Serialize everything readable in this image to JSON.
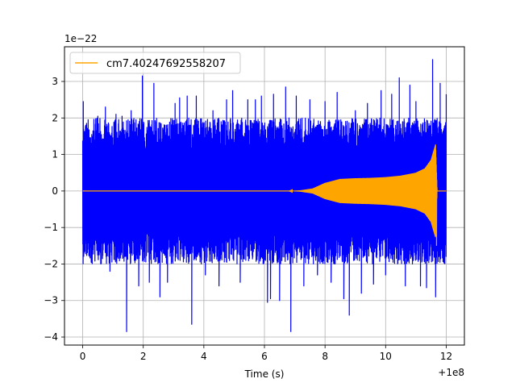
{
  "chart_data": {
    "type": "line",
    "title": "",
    "xlabel": "Time (s)",
    "ylabel": "",
    "x_offset_label": "+1e8",
    "y_scale_label": "1e−22",
    "xlim": [
      -0.6,
      12.6
    ],
    "ylim": [
      -4.22,
      3.95
    ],
    "x_ticks": [
      0,
      2,
      4,
      6,
      8,
      10,
      12
    ],
    "x_tick_labels": [
      "0",
      "2",
      "4",
      "6",
      "8",
      "10",
      "12"
    ],
    "y_ticks": [
      -4,
      -3,
      -2,
      -1,
      0,
      1,
      2,
      3
    ],
    "y_tick_labels": [
      "−4",
      "−3",
      "−2",
      "−1",
      "0",
      "1",
      "2",
      "3"
    ],
    "grid": true,
    "legend_position": "top-left",
    "series": [
      {
        "name": "",
        "color": "#0000ff",
        "kind": "noise",
        "x_range": [
          0,
          12
        ],
        "typical_envelope": [
          -2.0,
          2.0
        ],
        "peaks": [
          {
            "x": 0.02,
            "y": 2.45
          },
          {
            "x": 0.1,
            "y": -1.45
          },
          {
            "x": 0.28,
            "y": -1.95
          },
          {
            "x": 0.5,
            "y": 2.05
          },
          {
            "x": 0.75,
            "y": 2.3
          },
          {
            "x": 0.9,
            "y": -2.2
          },
          {
            "x": 1.1,
            "y": 2.1
          },
          {
            "x": 1.3,
            "y": 2.05
          },
          {
            "x": 1.45,
            "y": -3.85
          },
          {
            "x": 1.6,
            "y": 2.2
          },
          {
            "x": 1.85,
            "y": -2.6
          },
          {
            "x": 1.97,
            "y": 3.15
          },
          {
            "x": 2.2,
            "y": -2.5
          },
          {
            "x": 2.35,
            "y": 2.95
          },
          {
            "x": 2.55,
            "y": -2.9
          },
          {
            "x": 2.8,
            "y": -2.5
          },
          {
            "x": 3.05,
            "y": 2.4
          },
          {
            "x": 3.2,
            "y": 2.55
          },
          {
            "x": 3.45,
            "y": 2.6
          },
          {
            "x": 3.6,
            "y": -3.65
          },
          {
            "x": 3.75,
            "y": 2.6
          },
          {
            "x": 4.05,
            "y": -2.3
          },
          {
            "x": 4.3,
            "y": 2.2
          },
          {
            "x": 4.5,
            "y": -2.6
          },
          {
            "x": 4.75,
            "y": 2.5
          },
          {
            "x": 4.95,
            "y": 2.75
          },
          {
            "x": 5.2,
            "y": -2.5
          },
          {
            "x": 5.45,
            "y": 2.5
          },
          {
            "x": 5.7,
            "y": 2.5
          },
          {
            "x": 5.9,
            "y": 2.6
          },
          {
            "x": 6.1,
            "y": -3.05
          },
          {
            "x": 6.2,
            "y": -2.95
          },
          {
            "x": 6.3,
            "y": 2.65
          },
          {
            "x": 6.5,
            "y": -3.0
          },
          {
            "x": 6.7,
            "y": 2.85
          },
          {
            "x": 6.87,
            "y": -3.85
          },
          {
            "x": 7.05,
            "y": 2.6
          },
          {
            "x": 7.3,
            "y": -2.6
          },
          {
            "x": 7.5,
            "y": 2.5
          },
          {
            "x": 7.75,
            "y": -2.3
          },
          {
            "x": 8.0,
            "y": 2.45
          },
          {
            "x": 8.2,
            "y": -2.5
          },
          {
            "x": 8.4,
            "y": 2.7
          },
          {
            "x": 8.62,
            "y": -2.95
          },
          {
            "x": 8.8,
            "y": -3.4
          },
          {
            "x": 9.0,
            "y": 2.2
          },
          {
            "x": 9.2,
            "y": -2.8
          },
          {
            "x": 9.4,
            "y": 2.4
          },
          {
            "x": 9.6,
            "y": -2.55
          },
          {
            "x": 9.85,
            "y": 2.75
          },
          {
            "x": 10.0,
            "y": -2.3
          },
          {
            "x": 10.2,
            "y": 2.65
          },
          {
            "x": 10.45,
            "y": 3.1
          },
          {
            "x": 10.65,
            "y": -2.6
          },
          {
            "x": 10.8,
            "y": 2.9
          },
          {
            "x": 11.0,
            "y": 2.45
          },
          {
            "x": 11.15,
            "y": -2.6
          },
          {
            "x": 11.35,
            "y": -2.65
          },
          {
            "x": 11.55,
            "y": 3.6
          },
          {
            "x": 11.65,
            "y": -2.9
          },
          {
            "x": 11.8,
            "y": 2.95
          },
          {
            "x": 12.0,
            "y": 2.65
          }
        ]
      },
      {
        "name": "cm7.40247692558207",
        "color": "#ffa500",
        "kind": "chirp",
        "envelope": [
          {
            "x": 0,
            "y": 0.0
          },
          {
            "x": 6.8,
            "y": 0.0
          },
          {
            "x": 7.2,
            "y": 0.02
          },
          {
            "x": 7.6,
            "y": 0.07
          },
          {
            "x": 8.0,
            "y": 0.22
          },
          {
            "x": 8.5,
            "y": 0.33
          },
          {
            "x": 9.0,
            "y": 0.35
          },
          {
            "x": 9.5,
            "y": 0.36
          },
          {
            "x": 10.0,
            "y": 0.38
          },
          {
            "x": 10.5,
            "y": 0.42
          },
          {
            "x": 11.0,
            "y": 0.5
          },
          {
            "x": 11.3,
            "y": 0.62
          },
          {
            "x": 11.5,
            "y": 0.85
          },
          {
            "x": 11.65,
            "y": 1.28
          },
          {
            "x": 11.7,
            "y": 0.0
          },
          {
            "x": 12.0,
            "y": 0.0
          }
        ],
        "merger_min": {
          "x": 11.68,
          "y": -1.5
        }
      }
    ]
  }
}
